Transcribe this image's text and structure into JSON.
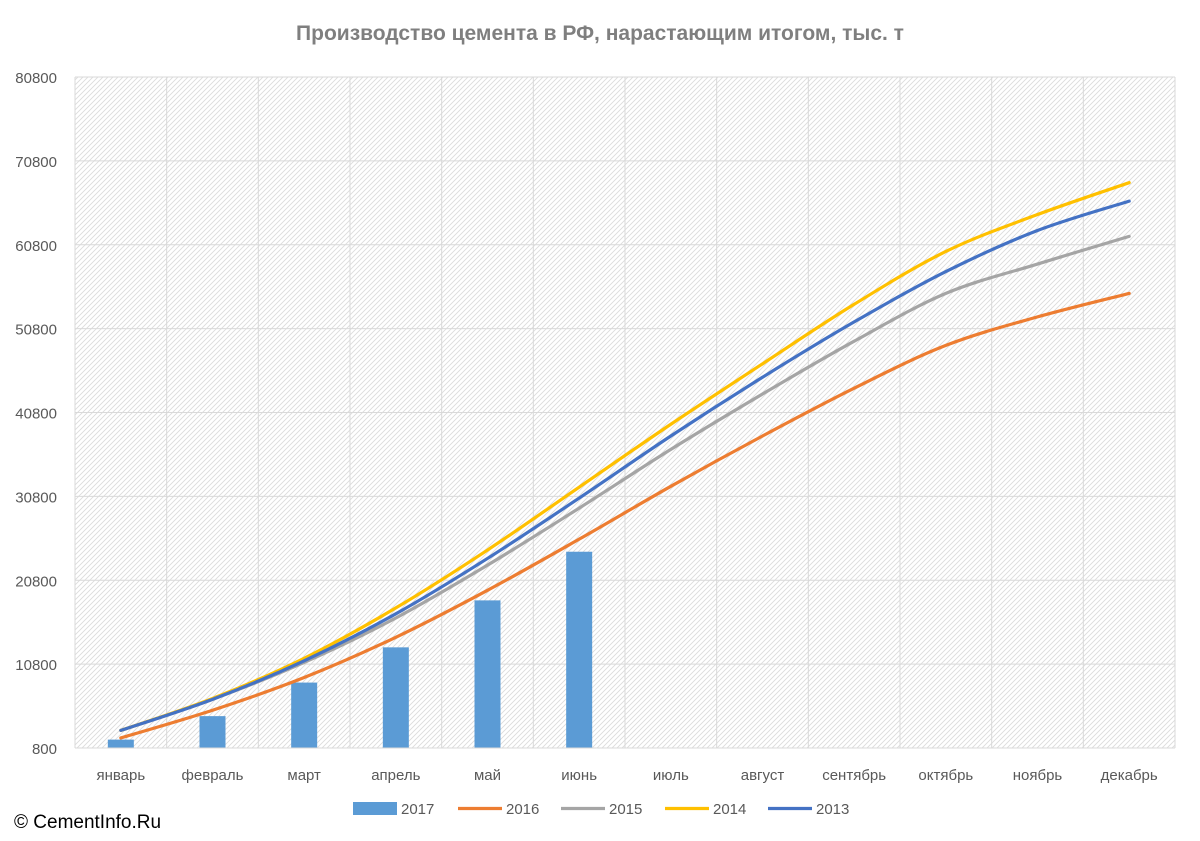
{
  "copyright": "© CementInfo.Ru",
  "chart_data": {
    "type": "line",
    "title": "Производство цемента в РФ, нарастающим итогом, тыс. т",
    "xlabel": "",
    "ylabel": "",
    "categories": [
      "январь",
      "февраль",
      "март",
      "апрель",
      "май",
      "июнь",
      "июль",
      "август",
      "сентябрь",
      "октябрь",
      "ноябрь",
      "декабрь"
    ],
    "ylim": [
      800,
      80800
    ],
    "yticks": [
      800,
      10800,
      20800,
      30800,
      40800,
      50800,
      60800,
      70800,
      80800
    ],
    "grid": true,
    "legend_position": "bottom",
    "series": [
      {
        "name": "2017",
        "kind": "bar",
        "color": "#5b9bd5",
        "values": [
          1800,
          4600,
          8600,
          12800,
          18400,
          24200,
          null,
          null,
          null,
          null,
          null,
          null
        ]
      },
      {
        "name": "2016",
        "kind": "line",
        "color": "#ed7d31",
        "values": [
          2000,
          5300,
          9200,
          14000,
          19600,
          25700,
          32000,
          38000,
          43700,
          48800,
          52200,
          55000
        ]
      },
      {
        "name": "2015",
        "kind": "line",
        "color": "#a5a5a5",
        "values": [
          2900,
          6600,
          11000,
          16300,
          22600,
          29400,
          36400,
          43000,
          49300,
          55000,
          58500,
          61800
        ]
      },
      {
        "name": "2014",
        "kind": "line",
        "color": "#ffc000",
        "values": [
          2900,
          6700,
          11500,
          17500,
          24400,
          31900,
          39400,
          46600,
          53700,
          60000,
          64400,
          68200
        ]
      },
      {
        "name": "2013",
        "kind": "line",
        "color": "#4472c4",
        "values": [
          2900,
          6600,
          11200,
          16800,
          23400,
          30600,
          38000,
          45000,
          51600,
          57600,
          62500,
          66000
        ]
      }
    ]
  }
}
